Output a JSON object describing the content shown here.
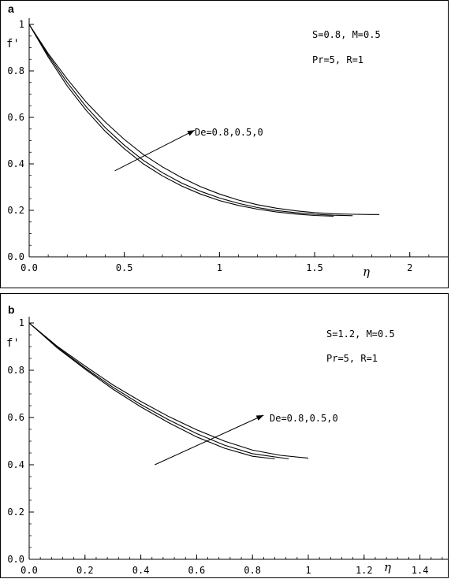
{
  "chart_data": [
    {
      "type": "line",
      "panel_label": "a",
      "xlabel": "η",
      "ylabel": "f'",
      "xlim": [
        0,
        2.2
      ],
      "ylim": [
        0,
        1.05
      ],
      "x_ticks": [
        "0.0",
        "0.5",
        "1",
        "1.5",
        "2"
      ],
      "x_tick_values": [
        0,
        0.5,
        1,
        1.5,
        2
      ],
      "y_ticks": [
        "0.0",
        "0.2",
        "0.4",
        "0.6",
        "0.8",
        "1"
      ],
      "y_tick_values": [
        0,
        0.2,
        0.4,
        0.6,
        0.8,
        1
      ],
      "params": [
        "S=0.8, M=0.5",
        "Pr=5, R=1"
      ],
      "arrow_label": "De=0.8,0.5,0",
      "arrow": {
        "from": [
          0.45,
          0.37
        ],
        "to": [
          0.87,
          0.545
        ]
      },
      "series": [
        {
          "x": [
            0,
            0.1,
            0.2,
            0.3,
            0.4,
            0.5,
            0.6,
            0.7,
            0.8,
            0.9,
            1.0,
            1.1,
            1.2,
            1.3,
            1.4,
            1.5,
            1.6
          ],
          "y": [
            1.0,
            0.86,
            0.735,
            0.63,
            0.54,
            0.465,
            0.4,
            0.348,
            0.305,
            0.27,
            0.242,
            0.221,
            0.205,
            0.193,
            0.184,
            0.178,
            0.175
          ]
        },
        {
          "x": [
            0,
            0.1,
            0.2,
            0.3,
            0.4,
            0.5,
            0.6,
            0.7,
            0.8,
            0.9,
            1.0,
            1.1,
            1.2,
            1.3,
            1.4,
            1.5,
            1.6,
            1.7
          ],
          "y": [
            1.0,
            0.868,
            0.75,
            0.645,
            0.556,
            0.48,
            0.415,
            0.362,
            0.318,
            0.282,
            0.253,
            0.23,
            0.212,
            0.199,
            0.19,
            0.183,
            0.179,
            0.177
          ]
        },
        {
          "x": [
            0,
            0.1,
            0.2,
            0.3,
            0.4,
            0.5,
            0.6,
            0.7,
            0.8,
            0.9,
            1.0,
            1.1,
            1.2,
            1.3,
            1.4,
            1.5,
            1.6,
            1.7,
            1.8,
            1.84
          ],
          "y": [
            1.0,
            0.875,
            0.765,
            0.665,
            0.58,
            0.505,
            0.44,
            0.387,
            0.341,
            0.302,
            0.27,
            0.244,
            0.224,
            0.209,
            0.198,
            0.19,
            0.185,
            0.183,
            0.182,
            0.182
          ]
        }
      ]
    },
    {
      "type": "line",
      "panel_label": "b",
      "xlabel": "η",
      "ylabel": "f'",
      "xlim": [
        0,
        1.5
      ],
      "ylim": [
        0,
        1.05
      ],
      "x_ticks": [
        "0.0",
        "0.2",
        "0.4",
        "0.6",
        "0.8",
        "1",
        "1.2",
        "1.4"
      ],
      "x_tick_values": [
        0,
        0.2,
        0.4,
        0.6,
        0.8,
        1,
        1.2,
        1.4
      ],
      "y_ticks": [
        "0.0",
        "0.2",
        "0.4",
        "0.6",
        "0.8",
        "1"
      ],
      "y_tick_values": [
        0,
        0.2,
        0.4,
        0.6,
        0.8,
        1
      ],
      "params": [
        "S=1.2, M=0.5",
        "Pr=5, R=1"
      ],
      "arrow_label": "De=0.8,0.5,0",
      "arrow": {
        "from": [
          0.45,
          0.4
        ],
        "to": [
          0.84,
          0.61
        ]
      },
      "series": [
        {
          "x": [
            0,
            0.1,
            0.2,
            0.3,
            0.4,
            0.5,
            0.6,
            0.7,
            0.8,
            0.88
          ],
          "y": [
            1.0,
            0.895,
            0.805,
            0.72,
            0.645,
            0.578,
            0.518,
            0.47,
            0.436,
            0.425
          ]
        },
        {
          "x": [
            0,
            0.1,
            0.2,
            0.3,
            0.4,
            0.5,
            0.6,
            0.7,
            0.8,
            0.93
          ],
          "y": [
            1.0,
            0.898,
            0.81,
            0.728,
            0.655,
            0.59,
            0.532,
            0.483,
            0.447,
            0.425
          ]
        },
        {
          "x": [
            0,
            0.1,
            0.2,
            0.3,
            0.4,
            0.5,
            0.6,
            0.7,
            0.8,
            0.9,
            1.0
          ],
          "y": [
            1.0,
            0.902,
            0.818,
            0.738,
            0.668,
            0.604,
            0.548,
            0.5,
            0.462,
            0.44,
            0.428
          ]
        }
      ]
    }
  ]
}
